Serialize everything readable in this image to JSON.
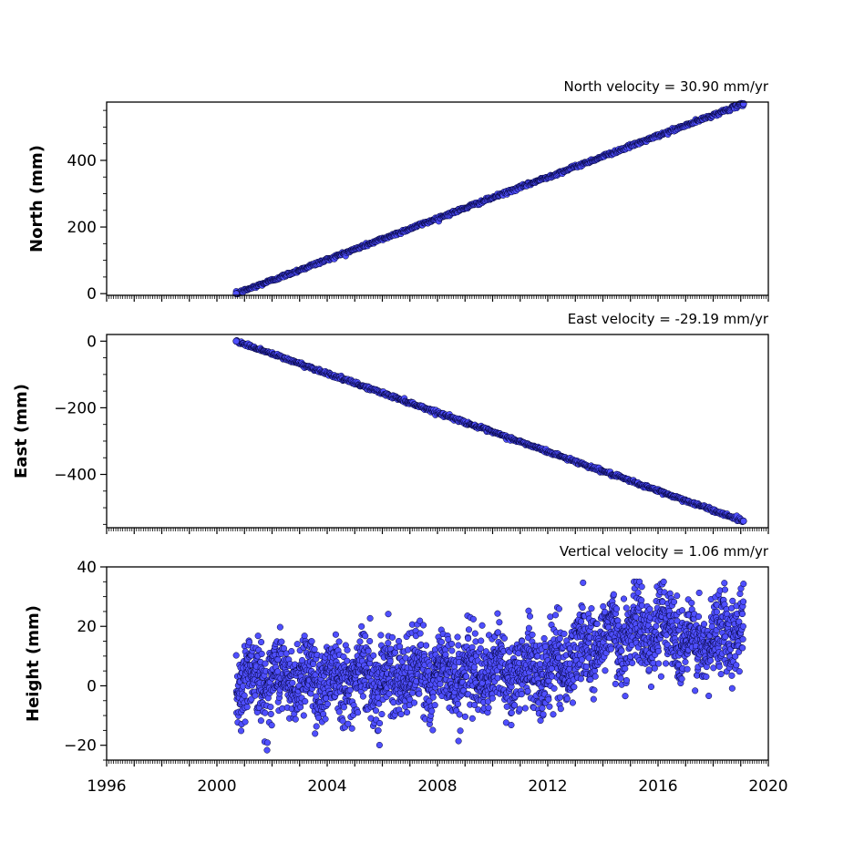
{
  "chart_data": [
    {
      "type": "scatter",
      "title": "North velocity = 30.90 mm/yr",
      "ylabel": "North (mm)",
      "xlabel": "",
      "xlim": [
        1996,
        2020
      ],
      "ylim": [
        -5,
        575
      ],
      "yticks": [
        0,
        200,
        400
      ],
      "ytick_labels": [
        "0",
        "200",
        "400"
      ],
      "x_start": 2000.7,
      "x_end": 2019.1,
      "y_start": 0,
      "y_end": 570,
      "noise": 2.5,
      "n_points": 900,
      "marker_color": "#4f4fff",
      "edge_color": "#000033"
    },
    {
      "type": "scatter",
      "title": "East velocity = -29.19 mm/yr",
      "ylabel": "East (mm)",
      "xlabel": "",
      "xlim": [
        1996,
        2020
      ],
      "ylim": [
        -560,
        20
      ],
      "yticks": [
        0,
        -200,
        -400
      ],
      "ytick_labels": [
        "0",
        "−200",
        "−400"
      ],
      "x_start": 2000.7,
      "x_end": 2019.1,
      "y_start": 0,
      "y_end": -540,
      "noise": 2.5,
      "n_points": 900,
      "marker_color": "#4f4fff",
      "edge_color": "#000033"
    },
    {
      "type": "scatter",
      "title": "Vertical velocity = 1.06 mm/yr",
      "ylabel": "Height (mm)",
      "xlabel": "",
      "xlim": [
        1996,
        2020
      ],
      "ylim": [
        -25,
        40
      ],
      "yticks": [
        40,
        20,
        0,
        -20
      ],
      "ytick_labels": [
        "40",
        "20",
        "0",
        "−20"
      ],
      "x_start": 2000.7,
      "x_end": 2019.1,
      "n_points": 2600,
      "trend_segments": [
        [
          2000.7,
          2.0
        ],
        [
          2012.0,
          5.0
        ],
        [
          2014.0,
          16.0
        ],
        [
          2016.5,
          20.0
        ],
        [
          2017.3,
          12.0
        ],
        [
          2019.1,
          22.0
        ]
      ],
      "noise": 6.5,
      "annual_amplitude": 4.0,
      "min_value": -24,
      "max_value": 35,
      "marker_color": "#4f4fff",
      "edge_color": "#000033"
    }
  ],
  "x_axis": {
    "ticks": [
      1996,
      2000,
      2004,
      2008,
      2012,
      2016,
      2020
    ],
    "tick_labels": [
      "1996",
      "2000",
      "2004",
      "2008",
      "2012",
      "2016",
      "2020"
    ]
  }
}
